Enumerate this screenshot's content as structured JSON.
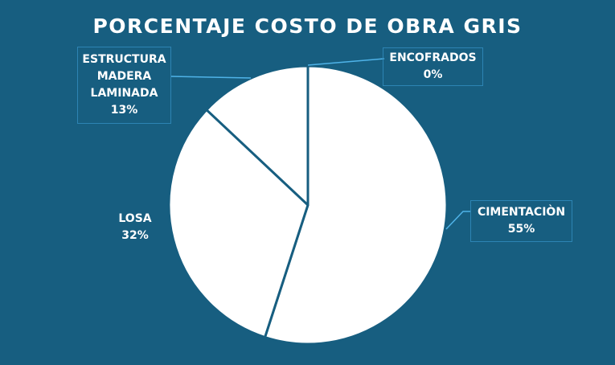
{
  "chart_data": {
    "type": "pie",
    "title": "PORCENTAJE COSTO DE OBRA GRIS",
    "slices": [
      {
        "name": "CIMENTACIÒN",
        "value": 55,
        "label": "55%"
      },
      {
        "name": "LOSA",
        "value": 32,
        "label": "32%"
      },
      {
        "name": "ESTRUCTURA MADERA LAMINADA",
        "value": 13,
        "label": "13%"
      },
      {
        "name": "ENCOFRADOS",
        "value": 0,
        "label": "0%"
      }
    ],
    "colors": {
      "background": "#175e80",
      "slice_fill": "#ffffff",
      "slice_border": "#175e80",
      "leader": "#4fb3e8"
    }
  },
  "labels": {
    "encofrados": {
      "line1": "ENCOFRADOS",
      "pct": "0%"
    },
    "estructura": {
      "line1": "ESTRUCTURA",
      "line2": "MADERA",
      "line3": "LAMINADA",
      "pct": "13%"
    },
    "cimentacion": {
      "line1": "CIMENTACIÒN",
      "pct": "55%"
    },
    "losa": {
      "line1": "LOSA",
      "pct": "32%"
    }
  }
}
